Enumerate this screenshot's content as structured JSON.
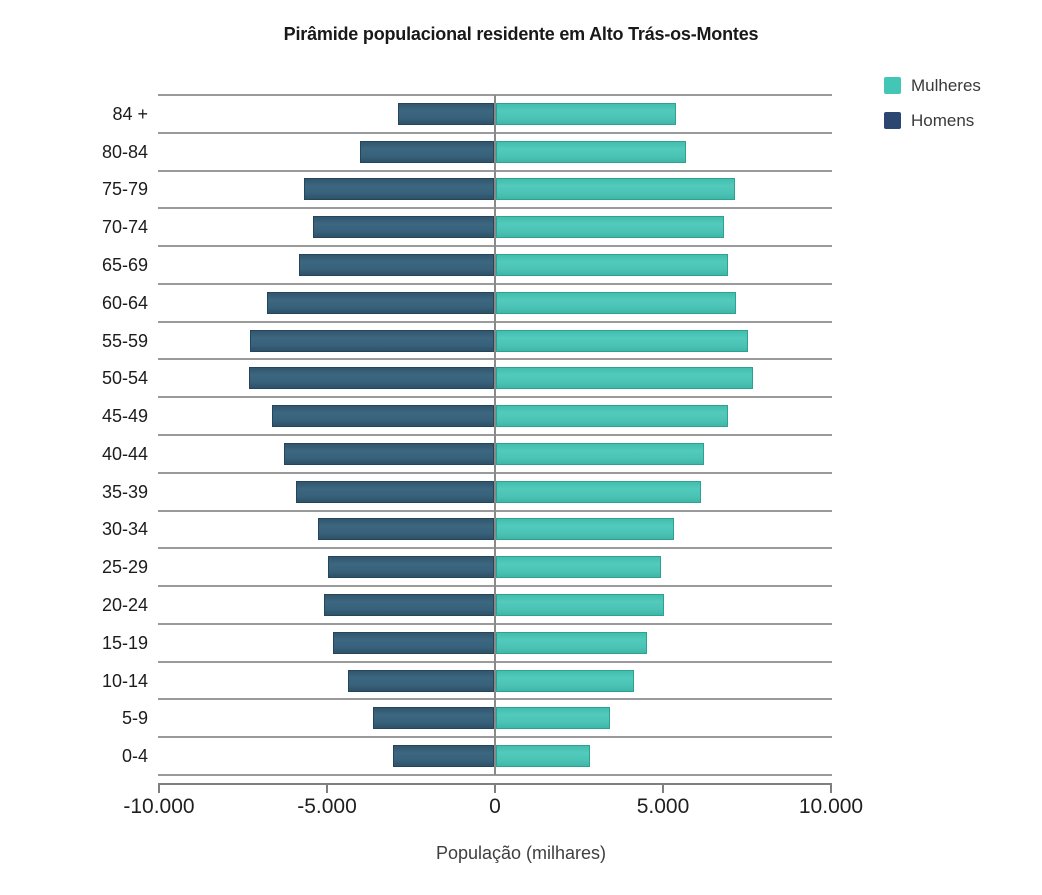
{
  "title": "Pirâmide populacional residente em Alto Trás-os-Montes",
  "xaxis_title": "População (milhares)",
  "colors": {
    "mulheres_fill": "#4CC4B5",
    "mulheres_legend": "#43C6B6",
    "homens_fill": "#38617B",
    "homens_legend": "#2B4670",
    "gridline": "#9A9A9A",
    "axis": "#7F7F7F"
  },
  "chart_data": {
    "type": "bar",
    "subtype": "population-pyramid-horizontal",
    "title": "Pirâmide populacional residente em Alto Trás-os-Montes",
    "xlabel": "População (milhares)",
    "ylabel": "",
    "xlim": [
      -10000,
      10000
    ],
    "grid": "horizontal",
    "legend_position": "top-right",
    "categories_top_to_bottom": [
      "84 +",
      "80-84",
      "75-79",
      "70-74",
      "65-69",
      "60-64",
      "55-59",
      "50-54",
      "45-49",
      "40-44",
      "35-39",
      "30-34",
      "25-29",
      "20-24",
      "15-19",
      "10-14",
      "5-9",
      "0-4"
    ],
    "series": [
      {
        "name": "Mulheres",
        "color": "#4CC4B5",
        "values": [
          5350,
          5650,
          7100,
          6800,
          6900,
          7150,
          7500,
          7650,
          6900,
          6200,
          6100,
          5300,
          4900,
          5000,
          4500,
          4100,
          3400,
          2800
        ]
      },
      {
        "name": "Homens",
        "color": "#2B4670",
        "values": [
          -2850,
          -4000,
          -5650,
          -5400,
          -5800,
          -6750,
          -7250,
          -7300,
          -6600,
          -6250,
          -5900,
          -5250,
          -4950,
          -5050,
          -4800,
          -4350,
          -3600,
          -3000
        ]
      }
    ],
    "xticks": [
      {
        "value": -10000,
        "label": "-10.000"
      },
      {
        "value": -5000,
        "label": "-5.000"
      },
      {
        "value": 0,
        "label": "0"
      },
      {
        "value": 5000,
        "label": "5.000"
      },
      {
        "value": 10000,
        "label": "10.000"
      }
    ]
  }
}
